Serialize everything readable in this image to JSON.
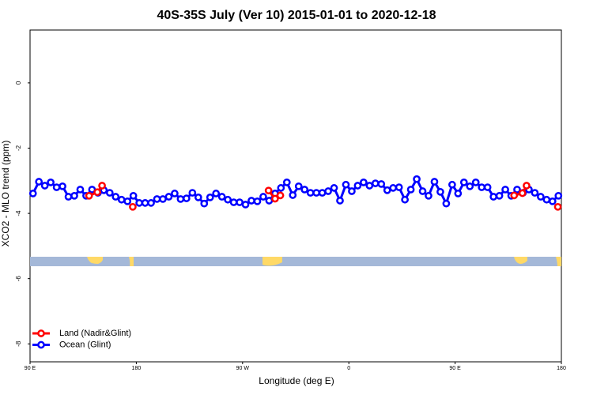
{
  "chart_data": {
    "type": "line",
    "title": "40S-35S July (Ver 10)   2015-01-01 to 2020-12-18",
    "x_label": "Longitude (deg E)",
    "y_label": "XCO2 - MLO trend (ppm)",
    "xlim": [
      90,
      540
    ],
    "ylim": [
      -8.55,
      1.62
    ],
    "xticks": [
      {
        "value": 90,
        "label": "90 E"
      },
      180,
      {
        "value": 270,
        "label": "90 W"
      },
      {
        "value": 360,
        "label": "0"
      },
      {
        "value": 450,
        "label": "90 E"
      },
      {
        "value": 540,
        "label": "180"
      }
    ],
    "yticks": [
      0,
      -2,
      -4,
      -6,
      -8
    ],
    "legend": "bottom-left",
    "series": [
      {
        "name": "Land (Nadir&Glint)",
        "color": "#ff0000",
        "x": [
          140,
          147,
          151,
          177,
          292,
          297.5,
          302,
          500,
          507,
          510.5,
          537
        ],
        "values": [
          -3.46,
          -3.35,
          -3.15,
          -3.8,
          -3.3,
          -3.55,
          -3.45,
          -3.45,
          -3.38,
          -3.15,
          -3.8
        ]
      },
      {
        "name": "Ocean (Glint)",
        "color": "#0000ff",
        "x": [
          92.5,
          97.5,
          102.5,
          107.5,
          112.5,
          117.5,
          122.5,
          127.5,
          132.5,
          137.5,
          142.5,
          147.5,
          152.5,
          157.5,
          162.5,
          167.5,
          172.5,
          177.5,
          182.5,
          187.5,
          192.5,
          197.5,
          202.5,
          207.5,
          212.5,
          217.5,
          222.5,
          227.5,
          232.5,
          237.5,
          242.5,
          247.5,
          252.5,
          257.5,
          262.5,
          267.5,
          272.5,
          277.5,
          282.5,
          287.5,
          292.5,
          297.5,
          302.5,
          307.5,
          312.5,
          317.5,
          322.5,
          327.5,
          332.5,
          337.5,
          342.5,
          347.5,
          352.5,
          357.5,
          362.5,
          367.5,
          372.5,
          377.5,
          382.5,
          387.5,
          392.5,
          397.5,
          402.5,
          407.5,
          412.5,
          417.5,
          422.5,
          427.5,
          432.5,
          437.5,
          442.5,
          447.5,
          452.5,
          457.5,
          462.5,
          467.5,
          472.5,
          477.5,
          482.5,
          487.5,
          492.5,
          497.5,
          502.5,
          507.5,
          512.5,
          517.5,
          522.5,
          527.5,
          532.5,
          537.5
        ],
        "values": [
          -3.39,
          -3.03,
          -3.15,
          -3.05,
          -3.2,
          -3.17,
          -3.49,
          -3.46,
          -3.27,
          -3.46,
          -3.27,
          -3.37,
          -3.29,
          -3.37,
          -3.49,
          -3.58,
          -3.63,
          -3.46,
          -3.68,
          -3.68,
          -3.68,
          -3.56,
          -3.56,
          -3.49,
          -3.39,
          -3.56,
          -3.54,
          -3.37,
          -3.51,
          -3.7,
          -3.51,
          -3.39,
          -3.49,
          -3.58,
          -3.66,
          -3.66,
          -3.73,
          -3.61,
          -3.63,
          -3.49,
          -3.61,
          -3.39,
          -3.22,
          -3.05,
          -3.44,
          -3.17,
          -3.27,
          -3.37,
          -3.37,
          -3.37,
          -3.32,
          -3.22,
          -3.61,
          -3.12,
          -3.32,
          -3.15,
          -3.05,
          -3.15,
          -3.08,
          -3.1,
          -3.29,
          -3.22,
          -3.2,
          -3.58,
          -3.27,
          -2.95,
          -3.32,
          -3.46,
          -3.03,
          -3.34,
          -3.7,
          -3.12,
          -3.39,
          -3.05,
          -3.17,
          -3.05,
          -3.2,
          -3.2,
          -3.49,
          -3.46,
          -3.27,
          -3.46,
          -3.27,
          -3.37,
          -3.27,
          -3.37,
          -3.49,
          -3.58,
          -3.63,
          -3.46
        ]
      }
    ]
  }
}
